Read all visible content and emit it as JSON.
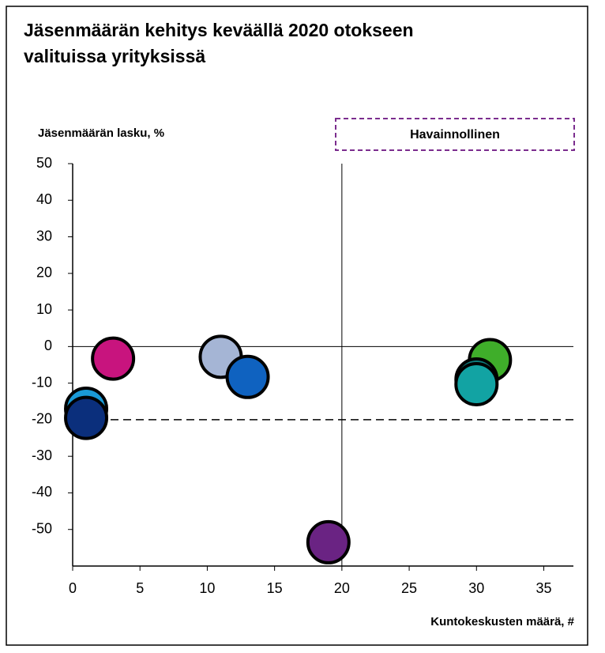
{
  "chart_data": {
    "type": "scatter",
    "title": [
      "Jäsenmäärän kehitys keväällä 2020 otokseen",
      "valituissa yrityksissä"
    ],
    "ylabel": "Jäsenmäärän lasku, %",
    "xlabel": "Kuntokeskusten määrä, #",
    "annotation": "Havainnollinen",
    "points": [
      {
        "x": 1,
        "y": -17,
        "color": "#1a9ad6"
      },
      {
        "x": 1,
        "y": -19.5,
        "color": "#0b2f7c"
      },
      {
        "x": 3,
        "y": -3.3,
        "color": "#c8147e"
      },
      {
        "x": 11,
        "y": -2.8,
        "color": "#a5b5d5"
      },
      {
        "x": 13,
        "y": -8.3,
        "color": "#0f62c0"
      },
      {
        "x": 19,
        "y": -53.5,
        "color": "#6a2383"
      },
      {
        "x": 31,
        "y": -3.7,
        "color": "#3fae2a"
      },
      {
        "x": 30,
        "y": -9,
        "color": "#0e7c7c"
      },
      {
        "x": 30,
        "y": -10.3,
        "color": "#12a3a3"
      }
    ],
    "reference_lines": {
      "x": 20,
      "y": 0,
      "y_dashed": -20
    },
    "xlim": [
      0,
      37.2
    ],
    "xticks": [
      0,
      5,
      10,
      15,
      20,
      25,
      30,
      35
    ],
    "ylim": [
      -60,
      50
    ],
    "yticks": [
      50,
      40,
      30,
      20,
      10,
      0,
      -10,
      -20,
      -30,
      -40,
      -50
    ]
  }
}
